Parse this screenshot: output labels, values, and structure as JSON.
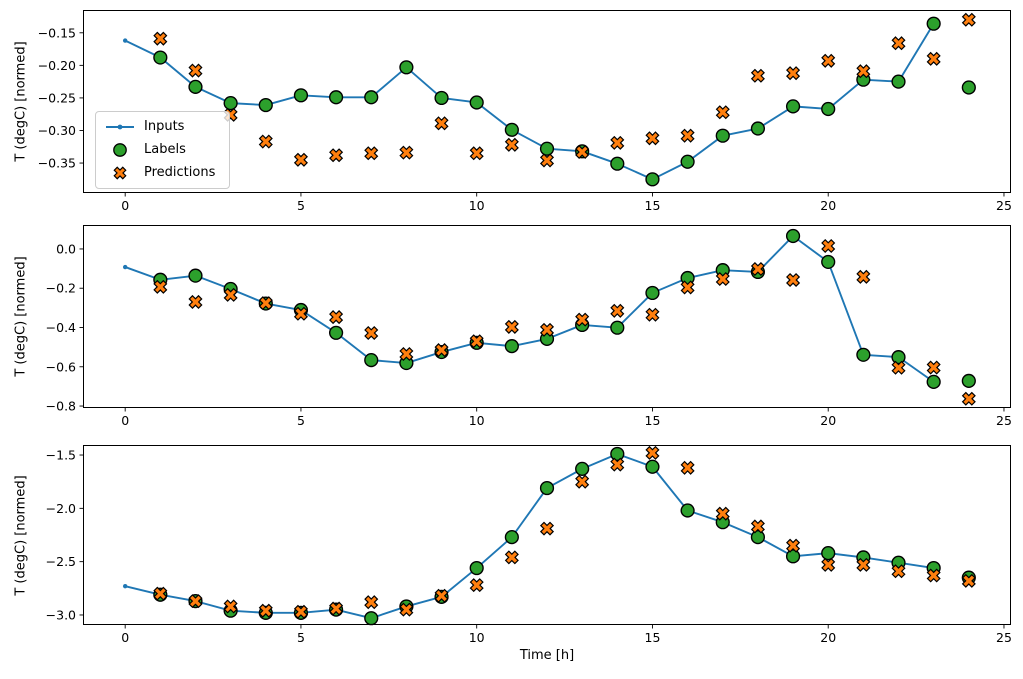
{
  "figure": {
    "background": "#ffffff",
    "xlabel": "Time [h]",
    "ylabel": "T (degC) [normed]",
    "legend": {
      "items": [
        {
          "label": "Inputs",
          "marker": "line-dot",
          "color": "#1f77b4"
        },
        {
          "label": "Labels",
          "marker": "circle",
          "color": "#2ca02c",
          "edge": "#000000"
        },
        {
          "label": "Predictions",
          "marker": "x",
          "color": "#ff7f0e",
          "edge": "#000000"
        }
      ]
    }
  },
  "chart_data": [
    {
      "type": "line",
      "title": "",
      "xlabel": "",
      "ylabel": "T (degC) [normed]",
      "grid": false,
      "legend_position": "center left",
      "xlim": [
        -1.2,
        25.2
      ],
      "ylim": [
        -0.396,
        -0.115
      ],
      "xticks": [
        0,
        5,
        10,
        15,
        20,
        25
      ],
      "xtick_labels": [
        "0",
        "5",
        "10",
        "15",
        "20",
        "25"
      ],
      "yticks": [
        -0.15,
        -0.2,
        -0.25,
        -0.3,
        -0.35
      ],
      "ytick_labels": [
        "−0.15",
        "−0.20",
        "−0.25",
        "−0.30",
        "−0.35"
      ],
      "series": [
        {
          "name": "Inputs",
          "type": "line",
          "color": "#1f77b4",
          "x": [
            0,
            1,
            2,
            3,
            4,
            5,
            6,
            7,
            8,
            9,
            10,
            11,
            12,
            13,
            14,
            15,
            16,
            17,
            18,
            19,
            20,
            21,
            22,
            23
          ],
          "y": [
            -0.162,
            -0.188,
            -0.233,
            -0.258,
            -0.261,
            -0.246,
            -0.249,
            -0.249,
            -0.203,
            -0.25,
            -0.257,
            -0.299,
            -0.328,
            -0.332,
            -0.351,
            -0.375,
            -0.348,
            -0.308,
            -0.297,
            -0.263,
            -0.267,
            -0.222,
            -0.225,
            -0.136
          ]
        },
        {
          "name": "Labels",
          "type": "scatter-circle",
          "color": "#2ca02c",
          "edge": "#000000",
          "x": [
            1,
            2,
            3,
            4,
            5,
            6,
            7,
            8,
            9,
            10,
            11,
            12,
            13,
            14,
            15,
            16,
            17,
            18,
            19,
            20,
            21,
            22,
            23,
            24
          ],
          "y": [
            -0.188,
            -0.233,
            -0.258,
            -0.261,
            -0.246,
            -0.249,
            -0.249,
            -0.203,
            -0.25,
            -0.257,
            -0.299,
            -0.328,
            -0.332,
            -0.351,
            -0.375,
            -0.348,
            -0.308,
            -0.297,
            -0.263,
            -0.267,
            -0.222,
            -0.225,
            -0.136,
            -0.234
          ]
        },
        {
          "name": "Predictions",
          "type": "scatter-x",
          "color": "#ff7f0e",
          "edge": "#000000",
          "x": [
            1,
            2,
            3,
            4,
            5,
            6,
            7,
            8,
            9,
            10,
            11,
            12,
            13,
            14,
            15,
            16,
            17,
            18,
            19,
            20,
            21,
            22,
            23,
            24
          ],
          "y": [
            -0.159,
            -0.208,
            -0.276,
            -0.317,
            -0.345,
            -0.338,
            -0.335,
            -0.334,
            -0.289,
            -0.335,
            -0.322,
            -0.346,
            -0.333,
            -0.319,
            -0.312,
            -0.308,
            -0.272,
            -0.216,
            -0.212,
            -0.193,
            -0.209,
            -0.166,
            -0.19,
            -0.13
          ]
        }
      ]
    },
    {
      "type": "line",
      "title": "",
      "xlabel": "",
      "ylabel": "T (degC) [normed]",
      "grid": false,
      "xlim": [
        -1.2,
        25.2
      ],
      "ylim": [
        -0.81,
        0.122
      ],
      "xticks": [
        0,
        5,
        10,
        15,
        20,
        25
      ],
      "xtick_labels": [
        "0",
        "5",
        "10",
        "15",
        "20",
        "25"
      ],
      "yticks": [
        0.0,
        -0.2,
        -0.4,
        -0.6,
        -0.8
      ],
      "ytick_labels": [
        "0.0",
        "−0.2",
        "−0.4",
        "−0.6",
        "−0.8"
      ],
      "series": [
        {
          "name": "Inputs",
          "type": "line",
          "color": "#1f77b4",
          "x": [
            0,
            1,
            2,
            3,
            4,
            5,
            6,
            7,
            8,
            9,
            10,
            11,
            12,
            13,
            14,
            15,
            16,
            17,
            18,
            19,
            20,
            21,
            22,
            23
          ],
          "y": [
            -0.092,
            -0.157,
            -0.136,
            -0.204,
            -0.278,
            -0.311,
            -0.427,
            -0.566,
            -0.581,
            -0.525,
            -0.478,
            -0.495,
            -0.458,
            -0.387,
            -0.401,
            -0.224,
            -0.148,
            -0.108,
            -0.117,
            0.066,
            -0.066,
            -0.539,
            -0.551,
            -0.677
          ]
        },
        {
          "name": "Labels",
          "type": "scatter-circle",
          "color": "#2ca02c",
          "edge": "#000000",
          "x": [
            1,
            2,
            3,
            4,
            5,
            6,
            7,
            8,
            9,
            10,
            11,
            12,
            13,
            14,
            15,
            16,
            17,
            18,
            19,
            20,
            21,
            22,
            23,
            24
          ],
          "y": [
            -0.157,
            -0.136,
            -0.204,
            -0.278,
            -0.311,
            -0.427,
            -0.566,
            -0.581,
            -0.525,
            -0.478,
            -0.495,
            -0.458,
            -0.387,
            -0.401,
            -0.224,
            -0.148,
            -0.108,
            -0.117,
            0.066,
            -0.066,
            -0.539,
            -0.551,
            -0.677,
            -0.672
          ]
        },
        {
          "name": "Predictions",
          "type": "scatter-x",
          "color": "#ff7f0e",
          "edge": "#000000",
          "x": [
            1,
            2,
            3,
            4,
            5,
            6,
            7,
            8,
            9,
            10,
            11,
            12,
            13,
            14,
            15,
            16,
            17,
            18,
            19,
            20,
            21,
            22,
            23,
            24
          ],
          "y": [
            -0.193,
            -0.27,
            -0.234,
            -0.276,
            -0.33,
            -0.347,
            -0.428,
            -0.535,
            -0.515,
            -0.47,
            -0.397,
            -0.412,
            -0.36,
            -0.315,
            -0.335,
            -0.196,
            -0.153,
            -0.102,
            -0.158,
            0.015,
            -0.142,
            -0.605,
            -0.604,
            -0.763
          ]
        }
      ]
    },
    {
      "type": "line",
      "title": "",
      "xlabel": "Time [h]",
      "ylabel": "T (degC) [normed]",
      "grid": false,
      "xlim": [
        -1.2,
        25.2
      ],
      "ylim": [
        -3.094,
        -1.406
      ],
      "xticks": [
        0,
        5,
        10,
        15,
        20,
        25
      ],
      "xtick_labels": [
        "0",
        "5",
        "10",
        "15",
        "20",
        "25"
      ],
      "yticks": [
        -1.5,
        -2.0,
        -2.5,
        -3.0
      ],
      "ytick_labels": [
        "−1.5",
        "−2.0",
        "−2.5",
        "−3.0"
      ],
      "series": [
        {
          "name": "Inputs",
          "type": "line",
          "color": "#1f77b4",
          "x": [
            0,
            1,
            2,
            3,
            4,
            5,
            6,
            7,
            8,
            9,
            10,
            11,
            12,
            13,
            14,
            15,
            16,
            17,
            18,
            19,
            20,
            21,
            22,
            23
          ],
          "y": [
            -2.73,
            -2.81,
            -2.87,
            -2.96,
            -2.98,
            -2.98,
            -2.95,
            -3.03,
            -2.92,
            -2.83,
            -2.56,
            -2.27,
            -1.81,
            -1.63,
            -1.49,
            -1.61,
            -2.02,
            -2.13,
            -2.27,
            -2.45,
            -2.42,
            -2.46,
            -2.51,
            -2.56
          ]
        },
        {
          "name": "Labels",
          "type": "scatter-circle",
          "color": "#2ca02c",
          "edge": "#000000",
          "x": [
            1,
            2,
            3,
            4,
            5,
            6,
            7,
            8,
            9,
            10,
            11,
            12,
            13,
            14,
            15,
            16,
            17,
            18,
            19,
            20,
            21,
            22,
            23,
            24
          ],
          "y": [
            -2.81,
            -2.87,
            -2.96,
            -2.98,
            -2.98,
            -2.95,
            -3.03,
            -2.92,
            -2.83,
            -2.56,
            -2.27,
            -1.81,
            -1.63,
            -1.49,
            -1.61,
            -2.02,
            -2.13,
            -2.27,
            -2.45,
            -2.42,
            -2.46,
            -2.51,
            -2.56,
            -2.65
          ]
        },
        {
          "name": "Predictions",
          "type": "scatter-x",
          "color": "#ff7f0e",
          "edge": "#000000",
          "x": [
            1,
            2,
            3,
            4,
            5,
            6,
            7,
            8,
            9,
            10,
            11,
            12,
            13,
            14,
            15,
            16,
            17,
            18,
            19,
            20,
            21,
            22,
            23,
            24
          ],
          "y": [
            -2.8,
            -2.87,
            -2.92,
            -2.96,
            -2.97,
            -2.94,
            -2.88,
            -2.95,
            -2.82,
            -2.72,
            -2.46,
            -2.19,
            -1.75,
            -1.59,
            -1.48,
            -1.62,
            -2.05,
            -2.17,
            -2.35,
            -2.53,
            -2.53,
            -2.59,
            -2.63,
            -2.68
          ]
        }
      ]
    }
  ]
}
